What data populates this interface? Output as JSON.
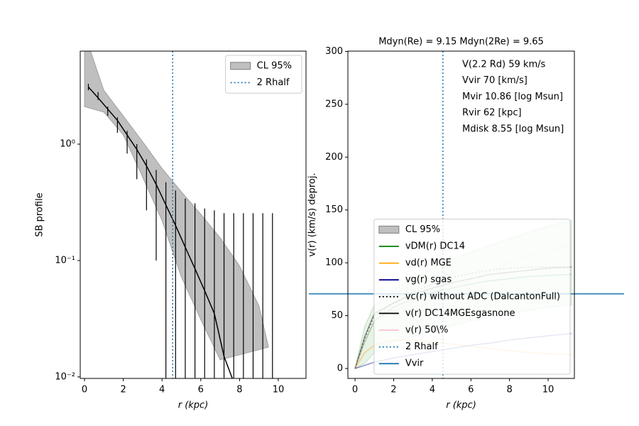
{
  "chart_data": [
    {
      "type": "line",
      "xlabel": "r (kpc)",
      "ylabel": "SB profile",
      "yscale": "log",
      "xlim": [
        -0.22,
        11.43
      ],
      "ylim": [
        0.0097,
        6.3
      ],
      "xticks": [
        0,
        2,
        4,
        6,
        8,
        10
      ],
      "yticks": [
        {
          "value": 0.01,
          "label": "10⁻²"
        },
        {
          "value": 0.1,
          "label": "10⁻¹"
        },
        {
          "value": 1,
          "label": "10⁰"
        }
      ],
      "legend": "upper right",
      "band": {
        "name": "CL 95%",
        "color": "#808080",
        "x": [
          0,
          1,
          2,
          3,
          4,
          5,
          6,
          7,
          8,
          9,
          9.5
        ],
        "upper": [
          9,
          2.9,
          1.75,
          1.05,
          0.62,
          0.39,
          0.25,
          0.157,
          0.09,
          0.041,
          0.018
        ],
        "lower": [
          2.1,
          1.88,
          1.2,
          0.52,
          0.22,
          0.072,
          0.031,
          0.014,
          null,
          null,
          null
        ]
      },
      "series": [
        {
          "color": "#000000",
          "x": [
            0.2,
            0.7,
            1.2,
            1.7,
            2.2,
            2.7,
            3.2,
            3.7,
            4.2,
            4.7,
            5.2,
            5.7,
            6.2,
            6.7,
            7.2,
            7.7,
            8.2,
            8.7,
            9.2,
            9.7
          ],
          "values": [
            3.1,
            2.5,
            2.0,
            1.6,
            1.2,
            0.9,
            0.65,
            0.45,
            0.3,
            0.2,
            0.13,
            0.085,
            0.055,
            0.035,
            0.015,
            0.009,
            null,
            null,
            null,
            null
          ],
          "err_low": [
            2.9,
            2.4,
            1.75,
            1.25,
            0.83,
            0.5,
            0.27,
            0.1,
            null,
            null,
            null,
            null,
            null,
            null,
            null,
            null,
            null,
            null,
            null,
            null
          ],
          "err_high": [
            3.3,
            2.8,
            2.1,
            1.7,
            1.3,
            1.0,
            0.74,
            0.6,
            0.47,
            0.4,
            0.34,
            0.31,
            0.28,
            0.27,
            0.255,
            0.255,
            0.255,
            0.255,
            0.255,
            0.255
          ]
        }
      ],
      "vlines": [
        {
          "name": "2 Rhalf",
          "x": 4.55,
          "color": "#1f77b4",
          "linestyle": "dotted"
        }
      ]
    },
    {
      "type": "line",
      "title": "Mdyn(Re) = 9.15  Mdyn(2Re) = 9.65",
      "xlabel": "r (kpc)",
      "ylabel": "v(r) (km/s) deproj.",
      "xlim": [
        -0.37,
        11.36
      ],
      "ylim": [
        -9.4,
        300.3
      ],
      "xticks": [
        0,
        2,
        4,
        6,
        8,
        10
      ],
      "yticks": [
        0,
        50,
        100,
        150,
        200,
        250,
        300
      ],
      "legend": "lower right",
      "annotations": [
        "V(2.2 Rd) 59 km/s",
        "Vvir 70 [km/s]",
        "Mvir 10.86 [log Msun]",
        "Rvir 62 [kpc]",
        "Mdisk 8.55 [log Msun]"
      ],
      "band": {
        "name": "CL 95%",
        "color": "#a0d0a0",
        "x": [
          0,
          0.5,
          1,
          2,
          3,
          4,
          5,
          6,
          7,
          8,
          9,
          10,
          11.2
        ],
        "upper": [
          0,
          40,
          60,
          75,
          85,
          95,
          103,
          110,
          117,
          123,
          129,
          135,
          140
        ],
        "lower": [
          0,
          5,
          15,
          25,
          30,
          35,
          40,
          45,
          48,
          52,
          55,
          58,
          60
        ]
      },
      "x": [
        0,
        0.5,
        1,
        2,
        3,
        4,
        5,
        6,
        7,
        8,
        9,
        10,
        11.2
      ],
      "series": [
        {
          "name": "vDM(r) DC14",
          "color": "#008000",
          "linestyle": "solid",
          "values": [
            0,
            25,
            45,
            58,
            66,
            72,
            76,
            80,
            83,
            85,
            87,
            88,
            89
          ]
        },
        {
          "name": "vd(r) MGE",
          "color": "#ffa500",
          "linestyle": "solid",
          "values": [
            0,
            15,
            22,
            27,
            27,
            25,
            23,
            21,
            19,
            17,
            15,
            14,
            13
          ]
        },
        {
          "name": "vg(r) sgas",
          "color": "#00008b",
          "linestyle": "solid",
          "values": [
            0,
            3,
            6,
            10,
            13,
            16,
            19,
            22,
            24,
            27,
            29,
            31,
            33
          ]
        },
        {
          "name": "vc(r) without ADC (DalcantonFull)",
          "color": "#000000",
          "linestyle": "dotted",
          "values": [
            0,
            28,
            50,
            62,
            72,
            80,
            86,
            90,
            93,
            95,
            96,
            96,
            96
          ]
        },
        {
          "name": "v(r) DC14MGEsgasnone",
          "color": "#000000",
          "linestyle": "solid",
          "values": [
            0,
            30,
            52,
            62,
            70,
            76,
            81,
            85,
            89,
            91,
            93,
            95,
            96
          ]
        },
        {
          "name": "v(r) 50\\%",
          "color": "#ffc0cb",
          "linestyle": "solid",
          "values": [
            0,
            25,
            45,
            55,
            62,
            70,
            77,
            84,
            92,
            100,
            106,
            112,
            117
          ]
        }
      ],
      "vlines": [
        {
          "name": "2 Rhalf",
          "x": 4.55,
          "color": "#1f77b4",
          "linestyle": "dotted"
        }
      ],
      "hlines": [
        {
          "name": "Vvir",
          "y": 70.6,
          "color": "#1f77b4",
          "linestyle": "solid"
        }
      ]
    }
  ]
}
